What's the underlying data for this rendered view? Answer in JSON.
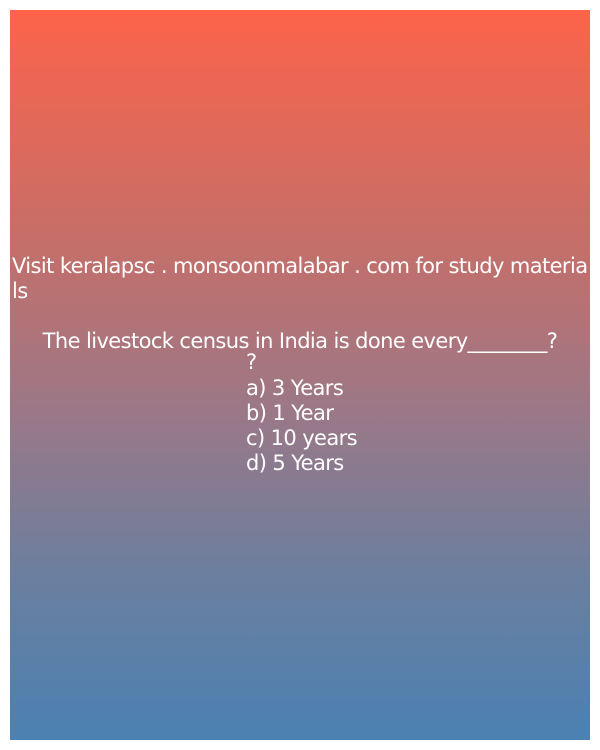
{
  "promo_text": "Visit keralapsc . monsoonmalabar . com for study materials",
  "question": {
    "text": "The livestock census in India is done every________?",
    "extra_mark": "?",
    "options": [
      "a) 3 Years",
      "b) 1 Year",
      "c) 10 years",
      "d) 5 Years"
    ]
  },
  "colors": {
    "gradient_top": "#fd634a",
    "gradient_bottom": "#4b81b2",
    "text": "#ffffff"
  }
}
